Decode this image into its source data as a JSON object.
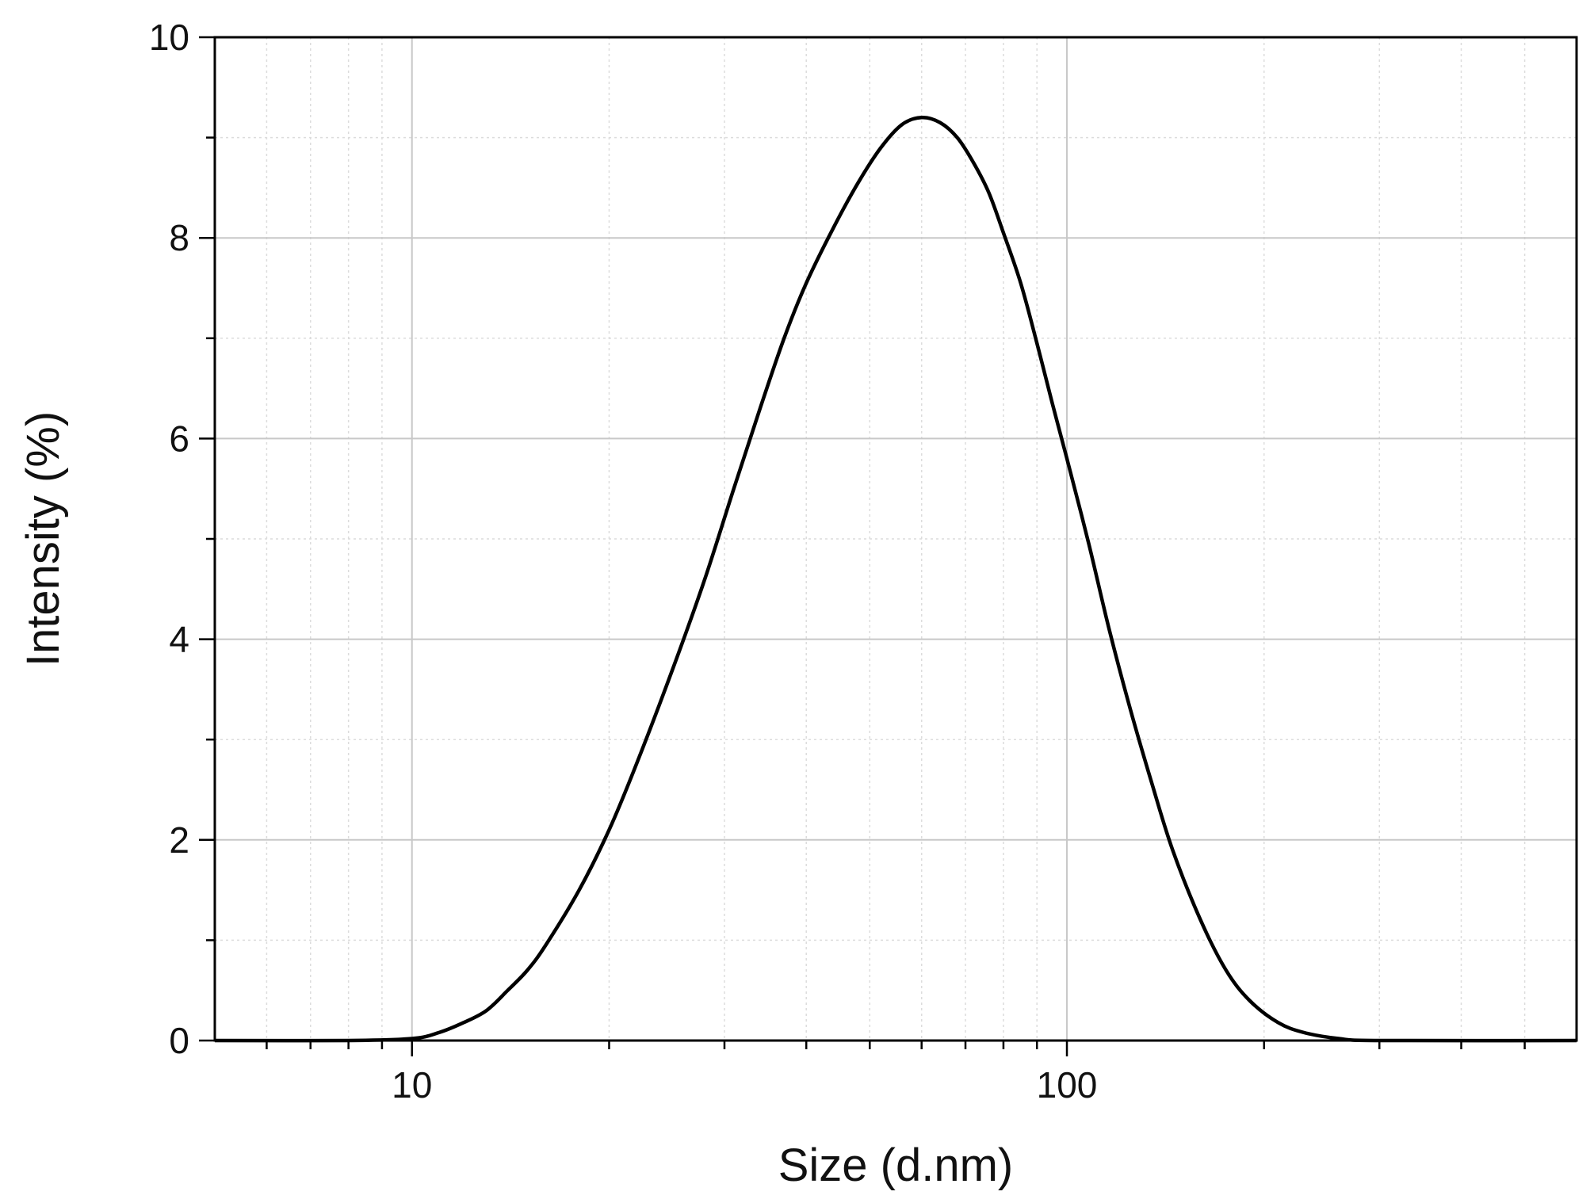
{
  "chart_data": {
    "type": "line",
    "title": "",
    "xlabel": "Size (d.nm)",
    "ylabel": "Intensity (%)",
    "x_scale": "log",
    "xlim": [
      5,
      600
    ],
    "ylim": [
      0,
      10
    ],
    "x_tick_labels": [
      "10",
      "100"
    ],
    "y_tick_labels": [
      "0",
      "2",
      "4",
      "6",
      "8",
      "10"
    ],
    "grid": true,
    "legend": "none",
    "series": [
      {
        "color": "#000000",
        "points": [
          [
            5,
            0
          ],
          [
            8,
            0
          ],
          [
            10,
            0.02
          ],
          [
            11,
            0.08
          ],
          [
            12,
            0.18
          ],
          [
            13,
            0.3
          ],
          [
            14,
            0.5
          ],
          [
            15,
            0.7
          ],
          [
            16,
            0.95
          ],
          [
            18,
            1.5
          ],
          [
            20,
            2.1
          ],
          [
            22,
            2.75
          ],
          [
            25,
            3.7
          ],
          [
            28,
            4.6
          ],
          [
            31,
            5.5
          ],
          [
            34,
            6.3
          ],
          [
            37,
            7.0
          ],
          [
            40,
            7.55
          ],
          [
            44,
            8.1
          ],
          [
            48,
            8.55
          ],
          [
            52,
            8.9
          ],
          [
            56,
            9.13
          ],
          [
            60,
            9.2
          ],
          [
            64,
            9.15
          ],
          [
            68,
            9.0
          ],
          [
            72,
            8.75
          ],
          [
            76,
            8.45
          ],
          [
            80,
            8.05
          ],
          [
            85,
            7.55
          ],
          [
            90,
            6.95
          ],
          [
            95,
            6.35
          ],
          [
            100,
            5.8
          ],
          [
            108,
            4.95
          ],
          [
            116,
            4.1
          ],
          [
            125,
            3.3
          ],
          [
            135,
            2.55
          ],
          [
            145,
            1.9
          ],
          [
            160,
            1.2
          ],
          [
            175,
            0.7
          ],
          [
            190,
            0.4
          ],
          [
            210,
            0.18
          ],
          [
            230,
            0.08
          ],
          [
            260,
            0.02
          ],
          [
            300,
            0.0
          ],
          [
            600,
            0
          ]
        ]
      }
    ]
  }
}
